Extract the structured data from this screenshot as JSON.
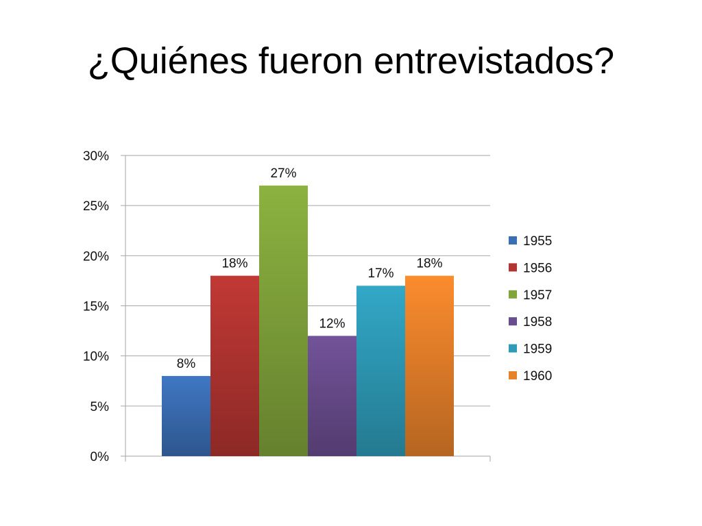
{
  "slide": {
    "title": "¿Quiénes fueron entrevistados?"
  },
  "colors": {
    "1955": "#3A6EB5",
    "1956": "#B33531",
    "1957": "#82A53B",
    "1958": "#6A4D8E",
    "1959": "#2E9CB8",
    "1960": "#E8822A",
    "gridline": "#A6A6A6"
  },
  "chart_data": {
    "type": "bar",
    "title": "",
    "xlabel": "",
    "ylabel": "",
    "ylim": [
      0,
      30
    ],
    "y_ticks": [
      "0%",
      "5%",
      "10%",
      "15%",
      "20%",
      "25%",
      "30%"
    ],
    "grid": true,
    "legend_position": "right",
    "series": [
      {
        "name": "1955",
        "value": 8,
        "label": "8%"
      },
      {
        "name": "1956",
        "value": 18,
        "label": "18%"
      },
      {
        "name": "1957",
        "value": 27,
        "label": "27%"
      },
      {
        "name": "1958",
        "value": 12,
        "label": "12%"
      },
      {
        "name": "1959",
        "value": 17,
        "label": "17%"
      },
      {
        "name": "1960",
        "value": 18,
        "label": "18%"
      }
    ]
  }
}
